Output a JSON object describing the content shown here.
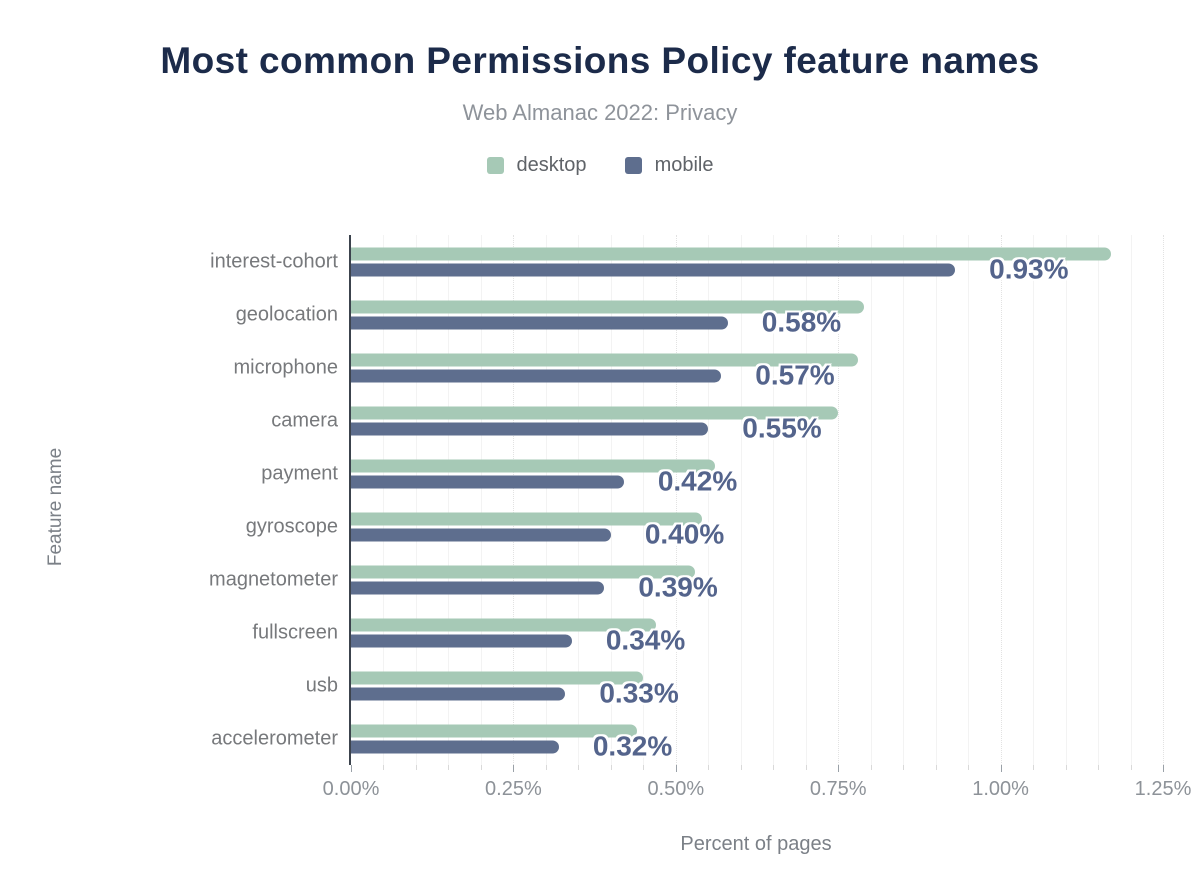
{
  "header": {
    "title": "Most common Permissions Policy feature names",
    "subtitle": "Web Almanac 2022: Privacy"
  },
  "legend": {
    "items": [
      {
        "label": "desktop",
        "color": "#a6c9b6"
      },
      {
        "label": "mobile",
        "color": "#5e6e8e"
      }
    ]
  },
  "chart_data": {
    "type": "bar",
    "orientation": "horizontal",
    "title": "Most common Permissions Policy feature names",
    "subtitle": "Web Almanac 2022: Privacy",
    "xlabel": "Percent of pages",
    "ylabel": "Feature name",
    "categories": [
      "interest-cohort",
      "geolocation",
      "microphone",
      "camera",
      "payment",
      "gyroscope",
      "magnetometer",
      "fullscreen",
      "usb",
      "accelerometer"
    ],
    "series": [
      {
        "name": "desktop",
        "color": "#a6c9b6",
        "values": [
          1.17,
          0.79,
          0.78,
          0.75,
          0.56,
          0.54,
          0.53,
          0.47,
          0.45,
          0.44
        ]
      },
      {
        "name": "mobile",
        "color": "#5e6e8e",
        "values": [
          0.93,
          0.58,
          0.57,
          0.55,
          0.42,
          0.4,
          0.39,
          0.34,
          0.33,
          0.32
        ]
      }
    ],
    "value_labels": [
      "0.93%",
      "0.58%",
      "0.57%",
      "0.55%",
      "0.42%",
      "0.40%",
      "0.39%",
      "0.34%",
      "0.33%",
      "0.32%"
    ],
    "value_labels_series": "mobile",
    "xlim": [
      0,
      1.25
    ],
    "x_ticks": [
      0,
      0.25,
      0.5,
      0.75,
      1.0,
      1.25
    ],
    "x_tick_labels": [
      "0.00%",
      "0.25%",
      "0.50%",
      "0.75%",
      "1.00%",
      "1.25%"
    ],
    "minor_step": 0.05,
    "grid": "vertical-minor-and-major",
    "legend_position": "top-center"
  },
  "colors": {
    "title": "#1c2b4a",
    "subtitle": "#8e939a",
    "axis_line": "#3c434d",
    "category_label": "#77797c",
    "tick_label": "#8d9298",
    "value_label": "#54648c",
    "grid_minor": "#f3f3f3",
    "grid_major": "#e2e2e2"
  }
}
